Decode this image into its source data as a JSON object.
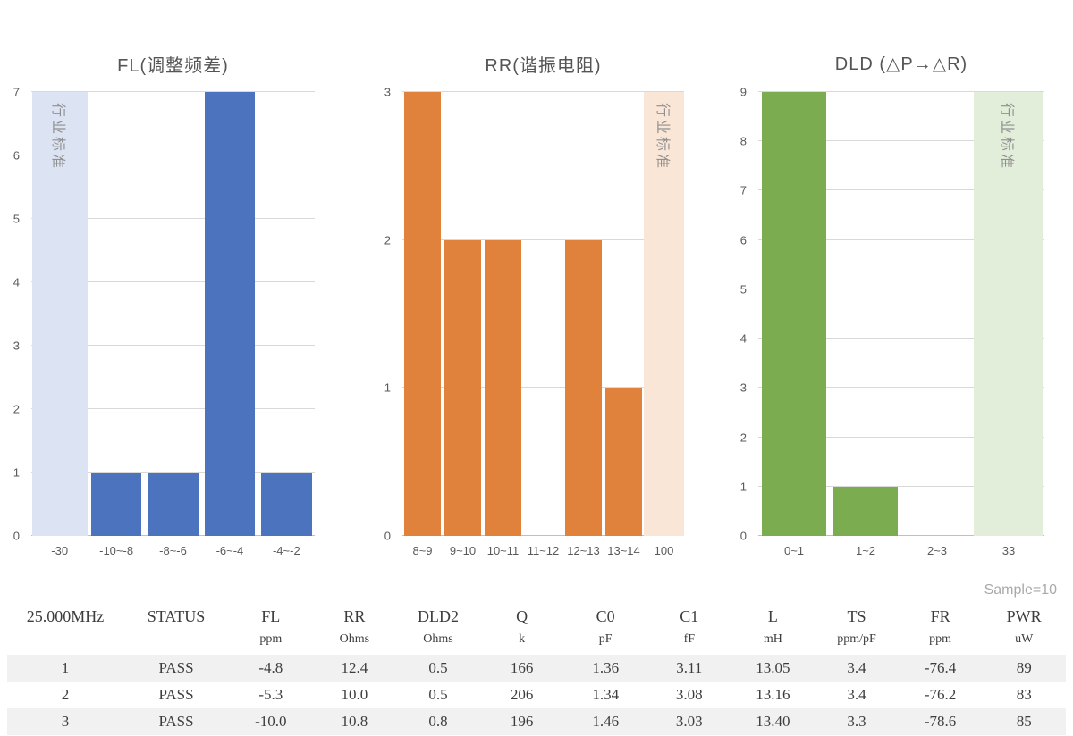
{
  "chart_data": [
    {
      "type": "bar",
      "title": "FL(调整频差)",
      "categories": [
        "-30",
        "-10~-8",
        "-8~-6",
        "-6~-4",
        "-4~-2"
      ],
      "values": [
        7,
        1,
        1,
        7,
        1
      ],
      "ylim": [
        0,
        7
      ],
      "ymax": 7,
      "xlabel": "",
      "ylabel": "",
      "grid": "horizontal",
      "bar_color": "#4C74BE",
      "band": {
        "index": 0,
        "label": "行业标准",
        "color": "#DCE3F2"
      }
    },
    {
      "type": "bar",
      "title": "RR(谐振电阻)",
      "categories": [
        "8~9",
        "9~10",
        "10~11",
        "11~12",
        "12~13",
        "13~14",
        "100"
      ],
      "values": [
        3,
        2,
        2,
        0,
        2,
        1,
        3
      ],
      "ylim": [
        0,
        3
      ],
      "ymax": 3,
      "xlabel": "",
      "ylabel": "",
      "grid": "horizontal",
      "bar_color": "#E0813C",
      "band": {
        "index": 6,
        "label": "行业标准",
        "color": "#FAE6D7"
      }
    },
    {
      "type": "bar",
      "title": "DLD (△P→△R)",
      "categories": [
        "0~1",
        "1~2",
        "2~3",
        "33"
      ],
      "values": [
        9,
        1,
        0,
        9
      ],
      "ylim": [
        0,
        9
      ],
      "ymax": 9,
      "xlabel": "",
      "ylabel": "",
      "grid": "horizontal",
      "bar_color": "#7BAD50",
      "band": {
        "index": 3,
        "label": "行业标准",
        "color": "#E3EEDA"
      }
    }
  ],
  "table": {
    "sample_label": "Sample=10",
    "headers": [
      "25.000MHz",
      "STATUS",
      "FL",
      "RR",
      "DLD2",
      "Q",
      "C0",
      "C1",
      "L",
      "TS",
      "FR",
      "PWR"
    ],
    "units": [
      "",
      "",
      "ppm",
      "Ohms",
      "Ohms",
      "k",
      "pF",
      "fF",
      "mH",
      "ppm/pF",
      "ppm",
      "uW"
    ],
    "rows": [
      [
        "1",
        "PASS",
        "-4.8",
        "12.4",
        "0.5",
        "166",
        "1.36",
        "3.11",
        "13.05",
        "3.4",
        "-76.4",
        "89"
      ],
      [
        "2",
        "PASS",
        "-5.3",
        "10.0",
        "0.5",
        "206",
        "1.34",
        "3.08",
        "13.16",
        "3.4",
        "-76.2",
        "83"
      ],
      [
        "3",
        "PASS",
        "-10.0",
        "10.8",
        "0.8",
        "196",
        "1.46",
        "3.03",
        "13.40",
        "3.3",
        "-78.6",
        "85"
      ]
    ],
    "stripe_color": "#f1f1f1"
  },
  "colors": {
    "fl_bar": "#4C74BE",
    "fl_band": "#DCE3F2",
    "rr_bar": "#E0813C",
    "rr_band": "#FAE6D7",
    "dld_bar": "#7BAD50",
    "dld_band": "#E3EEDA",
    "gridline": "#D9D9D9",
    "axis_text": "#595959"
  }
}
